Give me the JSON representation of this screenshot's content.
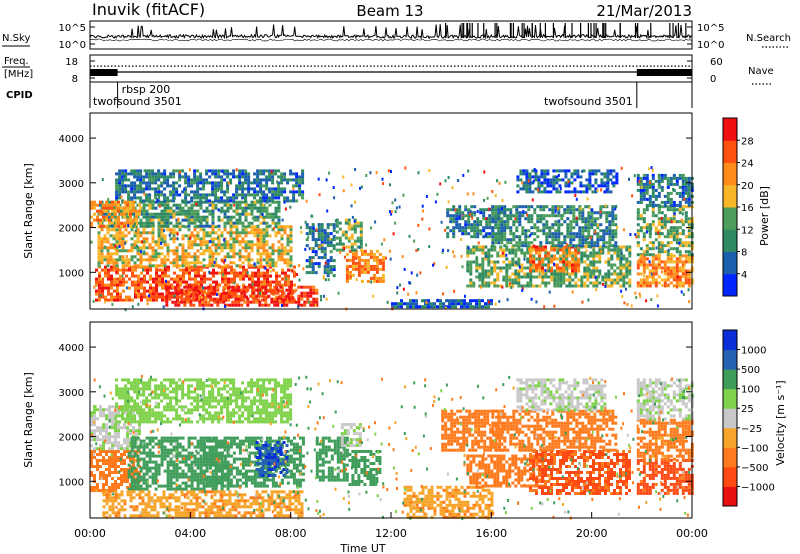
{
  "header": {
    "station": "Inuvik (fitACF)",
    "beam": "Beam 13",
    "date": "21/Mar/2013"
  },
  "strip_labels": {
    "nsky": "N.Sky",
    "nsearch": "N.Search",
    "freq_line1": "Freq.",
    "freq_line2": "[MHz]",
    "nave": "Nave",
    "cpid": "CPID"
  },
  "chart_data": [
    {
      "type": "line",
      "panel": "noise",
      "series": [
        {
          "name": "N.Sky"
        },
        {
          "name": "N.Search"
        }
      ],
      "x_range_hours": [
        0,
        24
      ],
      "y_ticks": [
        "10^5",
        "10^0"
      ],
      "y_ticks_right": [
        "10^5",
        "10^0"
      ],
      "noise_levels": [
        0.35,
        0.38,
        0.4,
        0.42,
        0.38,
        0.4,
        0.43,
        0.45,
        0.4,
        0.38,
        0.36,
        0.35,
        0.33,
        0.32,
        0.34,
        0.36,
        0.4,
        0.45,
        0.5,
        0.48,
        0.45,
        0.42,
        0.4,
        0.38
      ]
    },
    {
      "type": "line",
      "panel": "frequency",
      "y_ticks_left": [
        "18",
        "8"
      ],
      "y_ticks_right": [
        "60",
        "0"
      ],
      "freq_dense_ranges_hours": [
        [
          0,
          1.1
        ],
        [
          21.8,
          24
        ]
      ],
      "nave_level": 42
    },
    {
      "type": "table",
      "panel": "cpid",
      "segments": [
        {
          "label": "twofsound 3501",
          "start_hour": 0,
          "end_hour": 1.1
        },
        {
          "label": "rbsp 200",
          "start_hour": 1.1,
          "end_hour": 21.8
        },
        {
          "label": "twofsound 3501",
          "start_hour": 21.8,
          "end_hour": 24
        }
      ]
    },
    {
      "type": "heatmap",
      "panel": "power",
      "ylabel": "Slant Range [km]",
      "ylim": [
        180,
        4560
      ],
      "y_ticks": [
        1000,
        2000,
        3000,
        4000
      ],
      "colorbar_label": "Power [dB]",
      "colorbar_ticks": [
        4,
        8,
        12,
        16,
        20,
        24,
        28
      ],
      "colorbar_range": [
        0,
        32
      ],
      "regions": [
        {
          "t": [
            0.2,
            8.2
          ],
          "r": [
            350,
            1150
          ],
          "v": 26
        },
        {
          "t": [
            0.3,
            8.0
          ],
          "r": [
            1150,
            2050
          ],
          "v": 18
        },
        {
          "t": [
            0.3,
            7.5
          ],
          "r": [
            2050,
            2600
          ],
          "v": 12
        },
        {
          "t": [
            1.0,
            8.5
          ],
          "r": [
            2600,
            3300
          ],
          "v": 8
        },
        {
          "t": [
            0.0,
            2.0
          ],
          "r": [
            2000,
            2600
          ],
          "v": 22
        },
        {
          "t": [
            3.0,
            9.0
          ],
          "r": [
            250,
            700
          ],
          "v": 28
        },
        {
          "t": [
            8.6,
            9.7
          ],
          "r": [
            900,
            2100
          ],
          "v": 8
        },
        {
          "t": [
            10.2,
            11.7
          ],
          "r": [
            800,
            1500
          ],
          "v": 22
        },
        {
          "t": [
            9.8,
            10.8
          ],
          "r": [
            1500,
            2200
          ],
          "v": 14
        },
        {
          "t": [
            12.0,
            16.0
          ],
          "r": [
            200,
            400
          ],
          "v": 6
        },
        {
          "t": [
            14.2,
            16.5
          ],
          "r": [
            1800,
            2500
          ],
          "v": 8
        },
        {
          "t": [
            15.0,
            21.5
          ],
          "r": [
            700,
            1600
          ],
          "v": 14
        },
        {
          "t": [
            17.5,
            19.5
          ],
          "r": [
            1000,
            1600
          ],
          "v": 24
        },
        {
          "t": [
            16.0,
            21.0
          ],
          "r": [
            1600,
            2500
          ],
          "v": 10
        },
        {
          "t": [
            17.0,
            21.0
          ],
          "r": [
            2800,
            3300
          ],
          "v": 6
        },
        {
          "t": [
            21.8,
            24.0
          ],
          "r": [
            700,
            1400
          ],
          "v": 22
        },
        {
          "t": [
            21.8,
            24.0
          ],
          "r": [
            1400,
            2500
          ],
          "v": 14
        },
        {
          "t": [
            21.8,
            24.0
          ],
          "r": [
            2500,
            3200
          ],
          "v": 8
        }
      ]
    },
    {
      "type": "heatmap",
      "panel": "velocity",
      "ylabel": "Slant Range [km]",
      "ylim": [
        180,
        4560
      ],
      "y_ticks": [
        1000,
        2000,
        3000,
        4000
      ],
      "xlabel": "Time UT",
      "x_ticks": [
        "00:00",
        "04:00",
        "08:00",
        "12:00",
        "16:00",
        "20:00",
        "00:00"
      ],
      "colorbar_label": "Velocity [m s⁻¹]",
      "colorbar_ticks": [
        "1000",
        "500",
        "100",
        "25",
        "−25",
        "−100",
        "−500",
        "−1000"
      ],
      "regions": [
        {
          "t": [
            0.0,
            2.0
          ],
          "r": [
            800,
            1700
          ],
          "v": -200
        },
        {
          "t": [
            0.0,
            2.0
          ],
          "r": [
            1700,
            2700
          ],
          "v": 10
        },
        {
          "t": [
            1.5,
            5.5
          ],
          "r": [
            800,
            2000
          ],
          "v": 200
        },
        {
          "t": [
            4.5,
            8.5
          ],
          "r": [
            900,
            2000
          ],
          "v": 300
        },
        {
          "t": [
            6.6,
            7.9
          ],
          "r": [
            1100,
            1900
          ],
          "v": 900
        },
        {
          "t": [
            0.5,
            8.5
          ],
          "r": [
            250,
            800
          ],
          "v": -80
        },
        {
          "t": [
            1.0,
            8.0
          ],
          "r": [
            2300,
            3300
          ],
          "v": 60
        },
        {
          "t": [
            9.0,
            10.3
          ],
          "r": [
            1000,
            2000
          ],
          "v": 200
        },
        {
          "t": [
            10.3,
            11.6
          ],
          "r": [
            900,
            1700
          ],
          "v": 300
        },
        {
          "t": [
            10.0,
            10.8
          ],
          "r": [
            1800,
            2300
          ],
          "v": 10
        },
        {
          "t": [
            12.5,
            16.0
          ],
          "r": [
            200,
            900
          ],
          "v": -80
        },
        {
          "t": [
            14.0,
            16.5
          ],
          "r": [
            1700,
            2600
          ],
          "v": -200
        },
        {
          "t": [
            15.0,
            18.0
          ],
          "r": [
            900,
            1600
          ],
          "v": -300
        },
        {
          "t": [
            17.5,
            21.5
          ],
          "r": [
            700,
            1700
          ],
          "v": -600
        },
        {
          "t": [
            16.0,
            21.0
          ],
          "r": [
            1700,
            2600
          ],
          "v": -200
        },
        {
          "t": [
            17.0,
            20.5
          ],
          "r": [
            2600,
            3300
          ],
          "v": 10
        },
        {
          "t": [
            21.8,
            24.0
          ],
          "r": [
            700,
            1500
          ],
          "v": -700
        },
        {
          "t": [
            21.8,
            24.0
          ],
          "r": [
            1500,
            2400
          ],
          "v": -150
        },
        {
          "t": [
            21.8,
            24.0
          ],
          "r": [
            2400,
            3300
          ],
          "v": 10
        }
      ]
    }
  ],
  "colors": {
    "power_scale": [
      "#0026ff",
      "#1b5fae",
      "#2f8a63",
      "#4e9e5b",
      "#f7b728",
      "#ff8c1a",
      "#ff5210",
      "#f01010"
    ],
    "velocity_scale": [
      "#e81010",
      "#ff4a14",
      "#ff7a1c",
      "#f6a52a",
      "#c8c8c8",
      "#7fd24a",
      "#3f9d5a",
      "#2462b2",
      "#0a2fd8"
    ]
  }
}
